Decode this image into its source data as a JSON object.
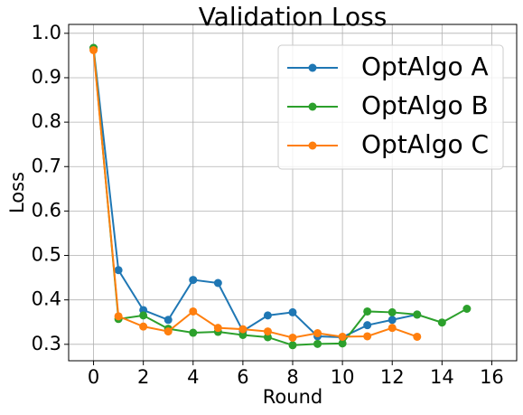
{
  "chart_data": {
    "type": "line",
    "title": "Validation Loss",
    "x_label": "Round",
    "y_label": "Loss",
    "x": [
      0,
      1,
      2,
      3,
      4,
      5,
      6,
      7,
      8,
      9,
      10,
      11,
      12,
      13,
      14,
      15
    ],
    "series": [
      {
        "name": "OptAlgo A",
        "color": "#1f77b4",
        "values": [
          0.967,
          0.467,
          0.377,
          0.355,
          0.445,
          0.438,
          0.33,
          0.365,
          0.372,
          0.318,
          0.316,
          0.343,
          0.355,
          0.367,
          null,
          null
        ]
      },
      {
        "name": "OptAlgo B",
        "color": "#2ca02c",
        "values": [
          0.967,
          0.357,
          0.365,
          0.335,
          0.326,
          0.328,
          0.321,
          0.316,
          0.298,
          0.301,
          0.302,
          0.374,
          0.372,
          0.367,
          0.349,
          0.38
        ]
      },
      {
        "name": "OptAlgo C",
        "color": "#ff7f0e",
        "values": [
          0.962,
          0.363,
          0.34,
          0.329,
          0.374,
          0.337,
          0.334,
          0.329,
          0.315,
          0.325,
          0.317,
          0.318,
          0.337,
          0.317,
          null,
          null
        ]
      }
    ],
    "xlim": [
      -1,
      17
    ],
    "xticks": [
      0,
      2,
      4,
      6,
      8,
      10,
      12,
      14,
      16
    ],
    "ylim": [
      0.263,
      1.02
    ],
    "yticks": [
      0.3,
      0.4,
      0.5,
      0.6,
      0.7,
      0.8,
      0.9,
      {
        "value": 1,
        "label": "1.0"
      }
    ],
    "grid": true,
    "legend": "upper-right"
  }
}
